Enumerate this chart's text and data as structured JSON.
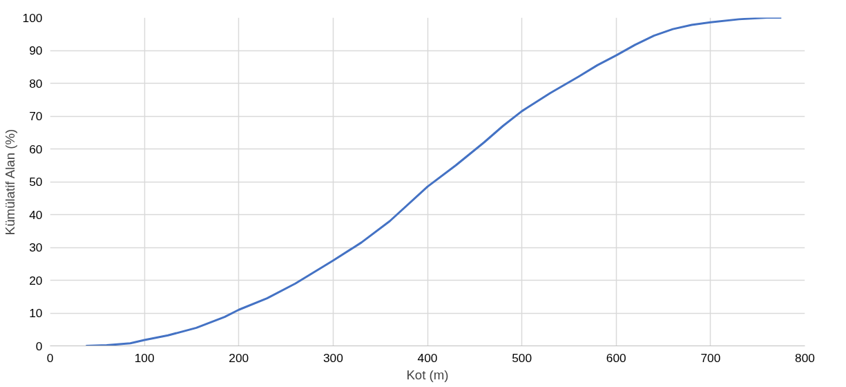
{
  "chart_data": {
    "type": "line",
    "xlabel": "Kot (m)",
    "ylabel": "Kümülatif Alan (%)",
    "xlim": [
      0,
      800
    ],
    "xticks": [
      0,
      100,
      200,
      300,
      400,
      500,
      600,
      700,
      800
    ],
    "ylim": [
      0,
      100
    ],
    "yticks": [
      0,
      10,
      20,
      30,
      40,
      50,
      60,
      70,
      80,
      90,
      100
    ],
    "grid": true,
    "marker": "none",
    "series": [
      {
        "color": "#4472c4",
        "x": [
          38,
          60,
          85,
          100,
          125,
          155,
          185,
          200,
          230,
          260,
          300,
          330,
          360,
          400,
          430,
          460,
          480,
          500,
          530,
          560,
          580,
          600,
          620,
          640,
          660,
          680,
          700,
          730,
          760,
          775
        ],
        "values": [
          0,
          0.2,
          0.8,
          1.8,
          3.2,
          5.5,
          8.8,
          11,
          14.5,
          19,
          26,
          31.5,
          38,
          48.5,
          55,
          62,
          67,
          71.5,
          77,
          82,
          85.5,
          88.5,
          91.7,
          94.5,
          96.5,
          97.8,
          98.6,
          99.5,
          100,
          100
        ]
      }
    ]
  }
}
